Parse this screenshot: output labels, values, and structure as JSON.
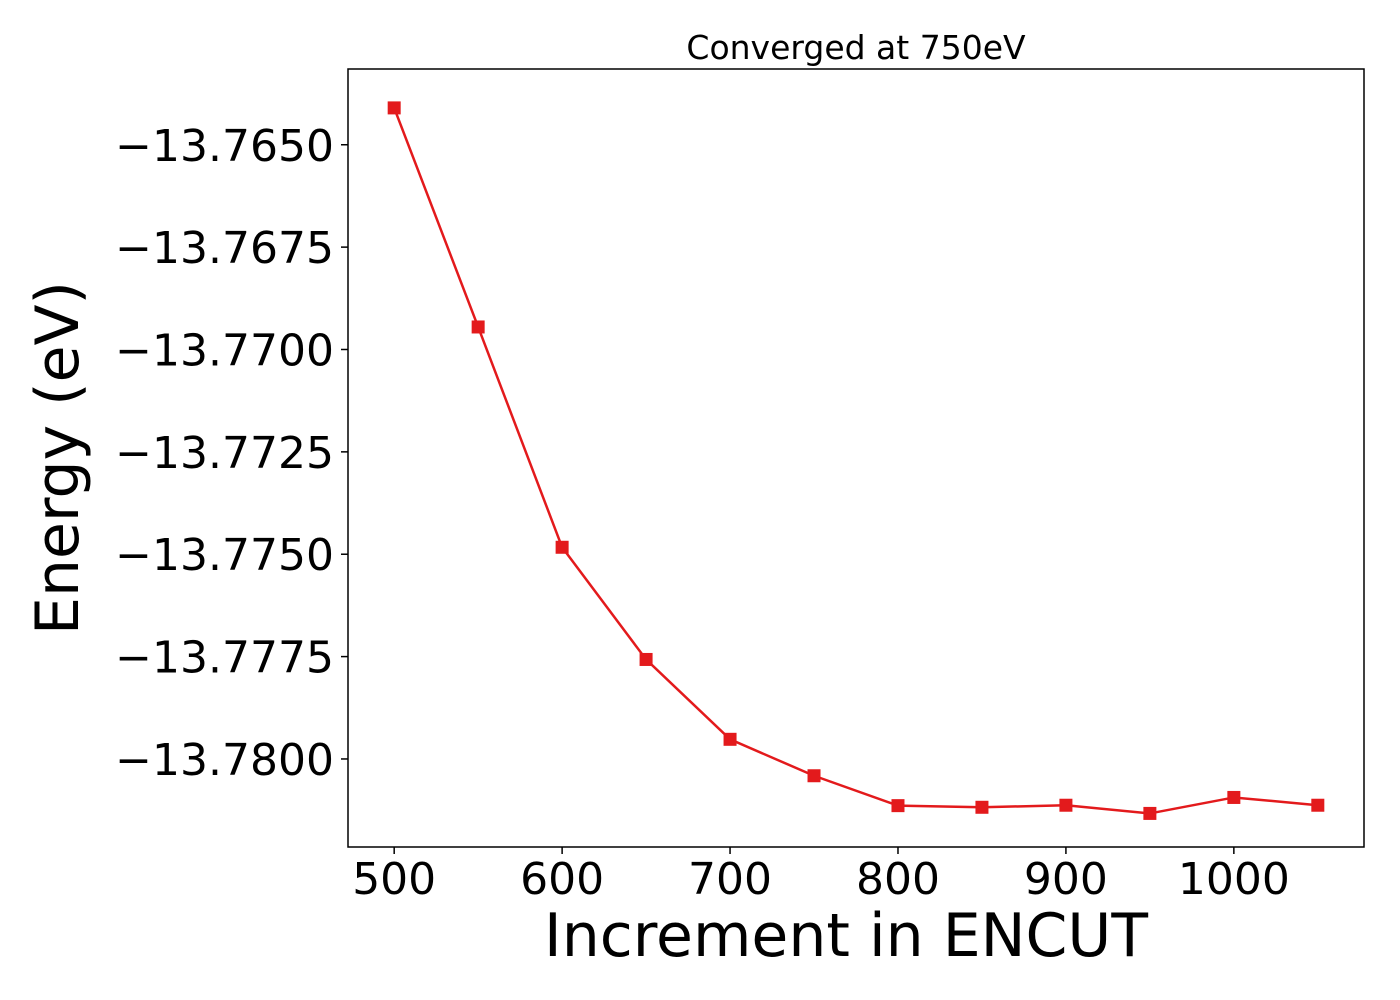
{
  "chart_data": {
    "type": "line",
    "title": "Converged at 750eV",
    "xlabel": "Increment in ENCUT",
    "ylabel": "Energy (eV)",
    "xlim": [
      472.5,
      1077.5
    ],
    "ylim": [
      -13.78215,
      -13.76315
    ],
    "x_ticks": [
      500,
      600,
      700,
      800,
      900,
      1000
    ],
    "x_tick_labels": [
      "500",
      "600",
      "700",
      "800",
      "900",
      "1000"
    ],
    "y_ticks": [
      -13.765,
      -13.7675,
      -13.77,
      -13.7725,
      -13.775,
      -13.7775,
      -13.78
    ],
    "y_tick_labels": [
      "−13.7650",
      "−13.7675",
      "−13.7700",
      "−13.7725",
      "−13.7750",
      "−13.7775",
      "−13.7800"
    ],
    "grid": false,
    "series": [
      {
        "color": "#e31a1c",
        "marker": "square",
        "x": [
          500,
          550,
          600,
          650,
          700,
          750,
          800,
          850,
          900,
          950,
          1000,
          1050
        ],
        "y": [
          -13.7641,
          -13.76945,
          -13.77483,
          -13.77757,
          -13.77952,
          -13.78041,
          -13.78114,
          -13.78118,
          -13.78113,
          -13.78133,
          -13.78094,
          -13.78113
        ]
      }
    ]
  }
}
